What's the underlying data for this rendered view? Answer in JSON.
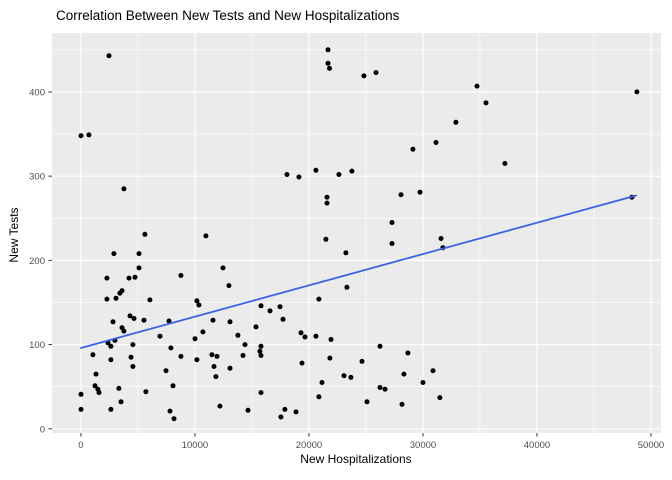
{
  "chart_data": {
    "type": "scatter",
    "title": "Correlation Between New Tests and New Hospitalizations",
    "xlabel": "New Hospitalizations",
    "ylabel": "New Tests",
    "x_ticks": [
      0,
      10000,
      20000,
      30000,
      40000,
      50000
    ],
    "x_tick_labels": [
      "0",
      "10000",
      "20000",
      "30000",
      "40000",
      "50000"
    ],
    "y_ticks": [
      0,
      100,
      200,
      300,
      400
    ],
    "y_tick_labels": [
      "0",
      "100",
      "200",
      "300",
      "400"
    ],
    "x_minor_ticks": [
      5000,
      15000,
      25000,
      35000,
      45000
    ],
    "y_minor_ticks": [
      50,
      150,
      250,
      350,
      450
    ],
    "xlim": [
      -2540,
      50880
    ],
    "ylim": [
      -5,
      470
    ],
    "grid": "white major and minor gridlines on gray panel",
    "legend": "none",
    "colors": {
      "panel_bg": "#EBEBEB",
      "grid_major": "#FFFFFF",
      "grid_minor": "#FFFFFF",
      "point": "#000000",
      "trend_line": "#3B65E6",
      "tick_label": "#4D4D4D",
      "tick_mark": "#333333",
      "text": "#000000",
      "figure_bg": "#FFFFFF"
    },
    "trendline": {
      "type": "linear",
      "x1": 0,
      "y1": 96,
      "x2": 48700,
      "y2": 277
    },
    "points": [
      [
        2460,
        443
      ],
      [
        0,
        348
      ],
      [
        700,
        349
      ],
      [
        21670,
        450
      ],
      [
        21670,
        434
      ],
      [
        21800,
        428
      ],
      [
        24820,
        419
      ],
      [
        25880,
        423
      ],
      [
        29120,
        332
      ],
      [
        31140,
        340
      ],
      [
        34740,
        407
      ],
      [
        35530,
        387
      ],
      [
        32890,
        364
      ],
      [
        48770,
        400
      ],
      [
        37190,
        315
      ],
      [
        18070,
        302
      ],
      [
        19120,
        299
      ],
      [
        20610,
        307
      ],
      [
        22630,
        302
      ],
      [
        23770,
        306
      ],
      [
        28070,
        278
      ],
      [
        29740,
        281
      ],
      [
        21580,
        275
      ],
      [
        21580,
        268
      ],
      [
        27280,
        245
      ],
      [
        21490,
        225
      ],
      [
        27280,
        220
      ],
      [
        31580,
        226
      ],
      [
        31750,
        215
      ],
      [
        23240,
        209
      ],
      [
        23330,
        168
      ],
      [
        20870,
        154
      ],
      [
        48330,
        275
      ],
      [
        3770,
        285
      ],
      [
        5610,
        231
      ],
      [
        2890,
        208
      ],
      [
        5090,
        208
      ],
      [
        10960,
        229
      ],
      [
        5090,
        191
      ],
      [
        2280,
        179
      ],
      [
        4210,
        179
      ],
      [
        4740,
        180
      ],
      [
        8770,
        182
      ],
      [
        12460,
        191
      ],
      [
        12980,
        170
      ],
      [
        3420,
        161
      ],
      [
        3600,
        164
      ],
      [
        2280,
        154
      ],
      [
        3070,
        155
      ],
      [
        6050,
        153
      ],
      [
        4300,
        134
      ],
      [
        4650,
        131
      ],
      [
        2810,
        127
      ],
      [
        5530,
        129
      ],
      [
        3600,
        120
      ],
      [
        3770,
        116
      ],
      [
        2370,
        102
      ],
      [
        2630,
        98
      ],
      [
        2980,
        105
      ],
      [
        4560,
        100
      ],
      [
        1050,
        88
      ],
      [
        2630,
        82
      ],
      [
        4390,
        85
      ],
      [
        1320,
        65
      ],
      [
        4560,
        74
      ],
      [
        1230,
        51
      ],
      [
        1490,
        47
      ],
      [
        1580,
        43
      ],
      [
        0,
        41
      ],
      [
        3330,
        48
      ],
      [
        3510,
        32
      ],
      [
        5700,
        44
      ],
      [
        0,
        23
      ],
      [
        2630,
        23
      ],
      [
        7810,
        21
      ],
      [
        8160,
        12
      ],
      [
        10170,
        152
      ],
      [
        10350,
        147
      ],
      [
        7720,
        128
      ],
      [
        11580,
        129
      ],
      [
        13070,
        127
      ],
      [
        6930,
        110
      ],
      [
        10000,
        107
      ],
      [
        10700,
        115
      ],
      [
        13770,
        111
      ],
      [
        14390,
        100
      ],
      [
        7890,
        96
      ],
      [
        8770,
        86
      ],
      [
        10170,
        82
      ],
      [
        11490,
        88
      ],
      [
        11930,
        86
      ],
      [
        11670,
        74
      ],
      [
        13070,
        72
      ],
      [
        14210,
        87
      ],
      [
        7460,
        69
      ],
      [
        11840,
        62
      ],
      [
        8070,
        51
      ],
      [
        12190,
        27
      ],
      [
        15790,
        146
      ],
      [
        16580,
        140
      ],
      [
        17460,
        145
      ],
      [
        17720,
        130
      ],
      [
        15350,
        121
      ],
      [
        19300,
        114
      ],
      [
        19650,
        109
      ],
      [
        20610,
        110
      ],
      [
        21930,
        106
      ],
      [
        15790,
        98
      ],
      [
        15700,
        92
      ],
      [
        15790,
        87
      ],
      [
        26230,
        98
      ],
      [
        21840,
        84
      ],
      [
        28680,
        90
      ],
      [
        19390,
        78
      ],
      [
        24650,
        80
      ],
      [
        30880,
        69
      ],
      [
        23070,
        63
      ],
      [
        23680,
        61
      ],
      [
        28330,
        65
      ],
      [
        21140,
        55
      ],
      [
        30000,
        55
      ],
      [
        26230,
        49
      ],
      [
        26670,
        47
      ],
      [
        15790,
        43
      ],
      [
        20870,
        38
      ],
      [
        25090,
        32
      ],
      [
        31490,
        37
      ],
      [
        28160,
        29
      ],
      [
        14650,
        22
      ],
      [
        17890,
        23
      ],
      [
        18860,
        20
      ],
      [
        17540,
        14
      ]
    ]
  }
}
